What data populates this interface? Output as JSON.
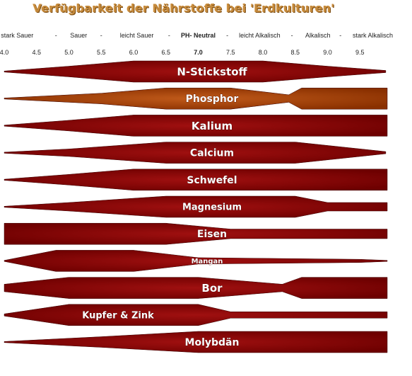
{
  "title": "Verfügbarkeit der Nährstoffe bei 'Erdkulturen'",
  "scale_labels": [
    {
      "text": "stark Sauer",
      "ph": 4.2,
      "bold": false
    },
    {
      "text": "-",
      "ph": 4.8,
      "bold": false
    },
    {
      "text": "Sauer",
      "ph": 5.15,
      "bold": false
    },
    {
      "text": "-",
      "ph": 5.5,
      "bold": false
    },
    {
      "text": "leicht Sauer",
      "ph": 6.05,
      "bold": false
    },
    {
      "text": "-",
      "ph": 6.55,
      "bold": false
    },
    {
      "text": "PH- Neutral",
      "ph": 7.0,
      "bold": true
    },
    {
      "text": "-",
      "ph": 7.45,
      "bold": false
    },
    {
      "text": "leicht Alkalisch",
      "ph": 7.95,
      "bold": false
    },
    {
      "text": "-",
      "ph": 8.45,
      "bold": false
    },
    {
      "text": "Alkalisch",
      "ph": 8.85,
      "bold": false
    },
    {
      "text": "-",
      "ph": 9.2,
      "bold": false
    },
    {
      "text": "stark Alkalisch",
      "ph": 9.7,
      "bold": false
    }
  ],
  "ph_values": [
    "4.0",
    "4.5",
    "5.0",
    "5.5",
    "6.0",
    "6.5",
    "7.0",
    "7.5",
    "8.0",
    "8.5",
    "9.0",
    "9.5"
  ],
  "colors": {
    "band": "#6e0000",
    "band_light": "#a01010",
    "phosphor": "#8a3000",
    "phosphor_light": "#c05a1a"
  },
  "chart_data": {
    "type": "band-diagram",
    "x_axis": {
      "label": "",
      "range": [
        4.0,
        10.0
      ],
      "ticks": [
        4.0,
        4.5,
        5.0,
        5.5,
        6.0,
        6.5,
        7.0,
        7.5,
        8.0,
        8.5,
        9.0,
        9.5
      ]
    },
    "series": [
      {
        "name": "N-Stickstoff",
        "color": "band",
        "profile": [
          [
            4.0,
            0.05
          ],
          [
            5.0,
            0.5
          ],
          [
            6.0,
            1.0
          ],
          [
            8.0,
            1.0
          ],
          [
            9.0,
            0.5
          ],
          [
            9.9,
            0.1
          ]
        ]
      },
      {
        "name": "Phosphor",
        "color": "phosphor",
        "profile": [
          [
            4.0,
            0.05
          ],
          [
            5.5,
            0.5
          ],
          [
            6.5,
            1.0
          ],
          [
            7.5,
            1.0
          ],
          [
            8.4,
            0.35
          ],
          [
            8.6,
            1.0
          ],
          [
            10.0,
            1.0
          ]
        ]
      },
      {
        "name": "Kalium",
        "color": "band",
        "profile": [
          [
            4.0,
            0.05
          ],
          [
            5.0,
            0.5
          ],
          [
            6.0,
            1.0
          ],
          [
            10.0,
            1.0
          ]
        ]
      },
      {
        "name": "Calcium",
        "color": "band",
        "profile": [
          [
            4.0,
            0.05
          ],
          [
            5.0,
            0.35
          ],
          [
            6.5,
            1.0
          ],
          [
            8.5,
            1.0
          ],
          [
            9.9,
            0.1
          ]
        ]
      },
      {
        "name": "Schwefel",
        "color": "band",
        "profile": [
          [
            4.0,
            0.05
          ],
          [
            5.0,
            0.5
          ],
          [
            6.0,
            1.0
          ],
          [
            10.0,
            1.0
          ]
        ]
      },
      {
        "name": "Magnesium",
        "color": "band",
        "profile": [
          [
            4.0,
            0.05
          ],
          [
            5.0,
            0.4
          ],
          [
            6.5,
            1.0
          ],
          [
            8.5,
            1.0
          ],
          [
            9.0,
            0.4
          ],
          [
            10.0,
            0.4
          ]
        ]
      },
      {
        "name": "Eisen",
        "color": "band",
        "profile": [
          [
            4.0,
            1.0
          ],
          [
            6.5,
            1.0
          ],
          [
            7.5,
            0.45
          ],
          [
            10.0,
            0.45
          ]
        ]
      },
      {
        "name": "Mangan",
        "color": "band",
        "profile": [
          [
            4.0,
            0.05
          ],
          [
            4.8,
            1.0
          ],
          [
            6.0,
            1.0
          ],
          [
            7.0,
            0.3
          ],
          [
            9.5,
            0.15
          ],
          [
            10.0,
            0.05
          ]
        ]
      },
      {
        "name": "Bor",
        "color": "band",
        "profile": [
          [
            4.0,
            0.35
          ],
          [
            5.0,
            1.0
          ],
          [
            7.0,
            1.0
          ],
          [
            8.3,
            0.35
          ],
          [
            8.6,
            1.0
          ],
          [
            10.0,
            1.0
          ]
        ]
      },
      {
        "name": "Kupfer & Zink",
        "color": "band",
        "profile": [
          [
            4.0,
            0.1
          ],
          [
            5.0,
            1.0
          ],
          [
            7.0,
            1.0
          ],
          [
            7.5,
            0.3
          ],
          [
            10.0,
            0.3
          ]
        ]
      },
      {
        "name": "Molybdän",
        "color": "band",
        "profile": [
          [
            4.0,
            0.05
          ],
          [
            5.5,
            0.5
          ],
          [
            7.0,
            1.0
          ],
          [
            10.0,
            1.0
          ]
        ]
      }
    ]
  }
}
